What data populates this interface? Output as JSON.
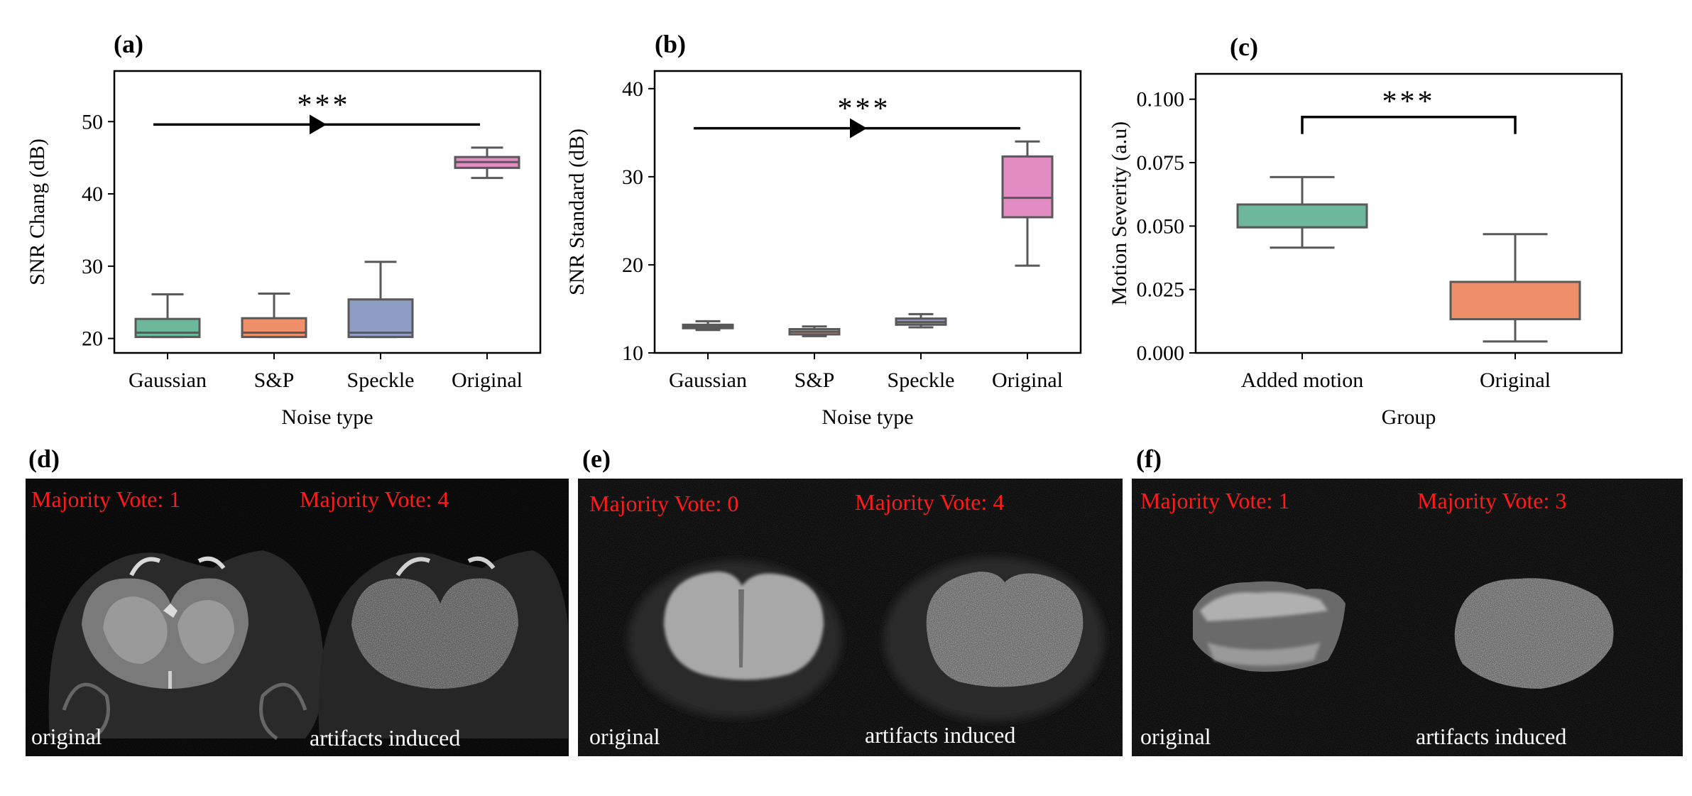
{
  "chart_data": [
    {
      "panel": "(a)",
      "type": "box",
      "xlabel": "Noise type",
      "ylabel": "SNR Chang (dB)",
      "ylim": [
        18,
        57
      ],
      "yticks": [
        20,
        30,
        40,
        50
      ],
      "categories": [
        "Gaussian",
        "S&P",
        "Speckle",
        "Original"
      ],
      "boxes": [
        {
          "whislo": 20.2,
          "q1": 20.2,
          "med": 20.8,
          "q3": 22.7,
          "whishi": 26.1,
          "color": "#6db89b"
        },
        {
          "whislo": 20.2,
          "q1": 20.2,
          "med": 20.8,
          "q3": 22.8,
          "whishi": 26.2,
          "color": "#ee8f6a"
        },
        {
          "whislo": 20.2,
          "q1": 20.2,
          "med": 20.8,
          "q3": 25.4,
          "whishi": 30.6,
          "color": "#8f9dc4"
        },
        {
          "whislo": 42.2,
          "q1": 43.6,
          "med": 44.4,
          "q3": 45.1,
          "whishi": 46.4,
          "color": "#e38cc4"
        }
      ],
      "annotation": {
        "text": "***",
        "type": "arrow",
        "y": 49.6,
        "from": 0,
        "to": 3
      }
    },
    {
      "panel": "(b)",
      "type": "box",
      "xlabel": "Noise type",
      "ylabel": "SNR Standard (dB)",
      "ylim": [
        10,
        42
      ],
      "yticks": [
        10,
        20,
        30,
        40
      ],
      "categories": [
        "Gaussian",
        "S&P",
        "Speckle",
        "Original"
      ],
      "boxes": [
        {
          "whislo": 12.6,
          "q1": 12.8,
          "med": 13.0,
          "q3": 13.2,
          "whishi": 13.6,
          "color": "#6db89b"
        },
        {
          "whislo": 11.9,
          "q1": 12.1,
          "med": 12.4,
          "q3": 12.7,
          "whishi": 13.0,
          "color": "#ee8f6a"
        },
        {
          "whislo": 12.9,
          "q1": 13.2,
          "med": 13.5,
          "q3": 13.9,
          "whishi": 14.4,
          "color": "#8f9dc4"
        },
        {
          "whislo": 19.9,
          "q1": 25.4,
          "med": 27.6,
          "q3": 32.3,
          "whishi": 34.0,
          "color": "#e38cc4"
        }
      ],
      "annotation": {
        "text": "***",
        "type": "arrow",
        "y": 35.5,
        "from": 0,
        "to": 3
      }
    },
    {
      "panel": "(c)",
      "type": "box",
      "xlabel": "Group",
      "ylabel": "Motion Severity (a.u)",
      "ylim": [
        0,
        0.11
      ],
      "yticks": [
        0.0,
        0.025,
        0.05,
        0.075,
        0.1
      ],
      "ytick_labels": [
        "0.000",
        "0.025",
        "0.050",
        "0.075",
        "0.100"
      ],
      "categories": [
        "Added motion",
        "Original"
      ],
      "boxes": [
        {
          "whislo": 0.0415,
          "q1": 0.0495,
          "med": 0.0495,
          "q3": 0.0585,
          "whishi": 0.0693,
          "color": "#6db89b"
        },
        {
          "whislo": 0.0045,
          "q1": 0.0133,
          "med": 0.0133,
          "q3": 0.028,
          "whishi": 0.0468,
          "color": "#ee8f6a"
        }
      ],
      "annotation": {
        "text": "***",
        "type": "bracket",
        "y": 0.093,
        "from": 0,
        "to": 1
      }
    }
  ],
  "image_panels": [
    {
      "panel": "(d)",
      "left_vote": "Majority Vote: 1",
      "right_vote": "Majority Vote: 4",
      "left_caption": "original",
      "right_caption": "artifacts induced"
    },
    {
      "panel": "(e)",
      "left_vote": "Majority Vote: 0",
      "right_vote": "Majority Vote: 4",
      "left_caption": "original",
      "right_caption": "artifacts induced"
    },
    {
      "panel": "(f)",
      "left_vote": "Majority Vote: 1",
      "right_vote": "Majority Vote: 3",
      "left_caption": "original",
      "right_caption": "artifacts induced"
    }
  ]
}
